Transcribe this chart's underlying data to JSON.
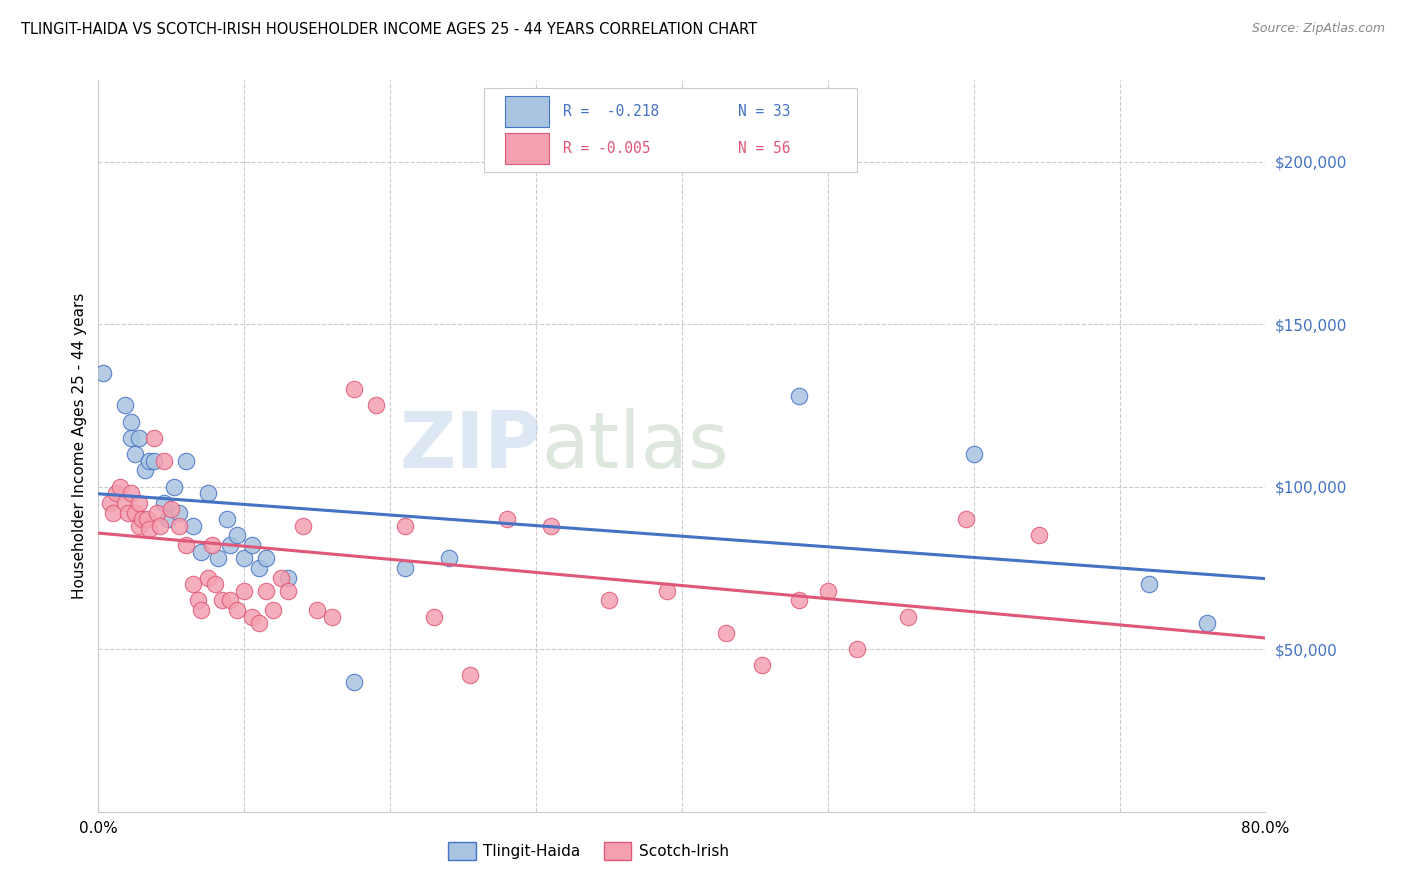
{
  "title": "TLINGIT-HAIDA VS SCOTCH-IRISH HOUSEHOLDER INCOME AGES 25 - 44 YEARS CORRELATION CHART",
  "source": "Source: ZipAtlas.com",
  "ylabel": "Householder Income Ages 25 - 44 years",
  "ytick_labels": [
    "$50,000",
    "$100,000",
    "$150,000",
    "$200,000"
  ],
  "ytick_values": [
    50000,
    100000,
    150000,
    200000
  ],
  "ymin": 0,
  "ymax": 225000,
  "xmin": 0.0,
  "xmax": 0.8,
  "color_blue": "#A8C4E0",
  "color_pink": "#F4A0B0",
  "line_blue": "#4472C4",
  "line_pink": "#E05878",
  "tlingit_x": [
    0.003,
    0.018,
    0.022,
    0.022,
    0.025,
    0.028,
    0.032,
    0.035,
    0.038,
    0.045,
    0.048,
    0.052,
    0.055,
    0.06,
    0.065,
    0.07,
    0.075,
    0.082,
    0.088,
    0.09,
    0.095,
    0.1,
    0.105,
    0.11,
    0.115,
    0.13,
    0.175,
    0.21,
    0.24,
    0.48,
    0.6,
    0.72,
    0.76
  ],
  "tlingit_y": [
    135000,
    125000,
    120000,
    115000,
    110000,
    115000,
    105000,
    108000,
    108000,
    95000,
    90000,
    100000,
    92000,
    108000,
    88000,
    80000,
    98000,
    78000,
    90000,
    82000,
    85000,
    78000,
    82000,
    75000,
    78000,
    72000,
    40000,
    75000,
    78000,
    128000,
    110000,
    70000,
    58000
  ],
  "scotch_x": [
    0.008,
    0.01,
    0.012,
    0.015,
    0.018,
    0.02,
    0.022,
    0.025,
    0.028,
    0.028,
    0.03,
    0.033,
    0.035,
    0.038,
    0.04,
    0.042,
    0.045,
    0.05,
    0.055,
    0.06,
    0.065,
    0.068,
    0.07,
    0.075,
    0.078,
    0.08,
    0.085,
    0.09,
    0.095,
    0.1,
    0.105,
    0.11,
    0.115,
    0.12,
    0.125,
    0.13,
    0.14,
    0.15,
    0.16,
    0.175,
    0.19,
    0.21,
    0.23,
    0.255,
    0.28,
    0.31,
    0.35,
    0.39,
    0.43,
    0.455,
    0.48,
    0.5,
    0.52,
    0.555,
    0.595,
    0.645
  ],
  "scotch_y": [
    95000,
    92000,
    98000,
    100000,
    95000,
    92000,
    98000,
    92000,
    95000,
    88000,
    90000,
    90000,
    87000,
    115000,
    92000,
    88000,
    108000,
    93000,
    88000,
    82000,
    70000,
    65000,
    62000,
    72000,
    82000,
    70000,
    65000,
    65000,
    62000,
    68000,
    60000,
    58000,
    68000,
    62000,
    72000,
    68000,
    88000,
    62000,
    60000,
    130000,
    125000,
    88000,
    60000,
    42000,
    90000,
    88000,
    65000,
    68000,
    55000,
    45000,
    65000,
    68000,
    50000,
    60000,
    90000,
    85000
  ]
}
